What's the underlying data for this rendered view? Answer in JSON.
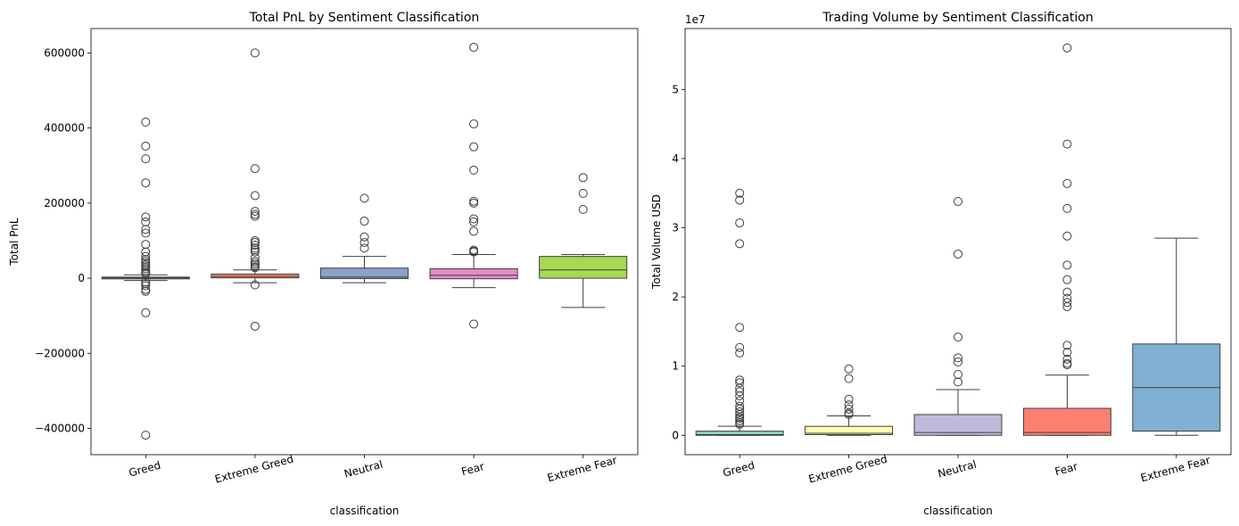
{
  "chart_data": [
    {
      "type": "box",
      "title": "Total PnL by Sentiment Classification",
      "xlabel": "classification",
      "ylabel": "Total PnL",
      "ylim": [
        -470000,
        665000
      ],
      "yticks": [
        -400000,
        -200000,
        0,
        200000,
        400000,
        600000
      ],
      "ytick_labels": [
        "−400000",
        "−200000",
        "0",
        "200000",
        "400000",
        "600000"
      ],
      "y_exponent_label": "",
      "categories": [
        "Greed",
        "Extreme Greed",
        "Neutral",
        "Fear",
        "Extreme Fear"
      ],
      "colors": [
        "#66c2a5",
        "#fc8d62",
        "#8da0cb",
        "#e78ac3",
        "#a6d854"
      ],
      "boxes": [
        {
          "q1": -1500,
          "median": 500,
          "q3": 3000,
          "whisker_low": -6000,
          "whisker_high": 9000,
          "outliers": [
            416000,
            352000,
            318000,
            254000,
            163000,
            150000,
            130000,
            120000,
            90000,
            70000,
            58000,
            50000,
            45000,
            40000,
            35000,
            30000,
            25000,
            20000,
            15000,
            12000,
            -10000,
            -15000,
            -20000,
            -30000,
            -35000,
            -92000,
            -418000
          ]
        },
        {
          "q1": 1000,
          "median": 5000,
          "q3": 11000,
          "whisker_low": -12000,
          "whisker_high": 22000,
          "outliers": [
            600000,
            292000,
            220000,
            178000,
            170000,
            165000,
            100000,
            95000,
            88000,
            80000,
            75000,
            70000,
            55000,
            45000,
            40000,
            35000,
            30000,
            28000,
            -18000,
            -128000
          ]
        },
        {
          "q1": -1000,
          "median": 3000,
          "q3": 27000,
          "whisker_low": -12000,
          "whisker_high": 58000,
          "outliers": [
            213000,
            152000,
            110000,
            95000,
            80000
          ]
        },
        {
          "q1": -1500,
          "median": 8000,
          "q3": 25000,
          "whisker_low": -25000,
          "whisker_high": 63000,
          "outliers": [
            615000,
            411000,
            350000,
            288000,
            205000,
            200000,
            158000,
            150000,
            125000,
            75000,
            72000,
            70000,
            -122000
          ]
        },
        {
          "q1": 0,
          "median": 22000,
          "q3": 58000,
          "whisker_low": -78000,
          "whisker_high": 63000,
          "outliers": [
            268000,
            226000,
            183000
          ]
        }
      ]
    },
    {
      "type": "box",
      "title": "Trading Volume by Sentiment Classification",
      "xlabel": "classification",
      "ylabel": "Total Volume USD",
      "ylim": [
        -2800000,
        58800000
      ],
      "yticks": [
        0,
        10000000,
        20000000,
        30000000,
        40000000,
        50000000
      ],
      "ytick_labels": [
        "0",
        "1",
        "2",
        "3",
        "4",
        "5"
      ],
      "y_exponent_label": "1e7",
      "categories": [
        "Greed",
        "Extreme Greed",
        "Neutral",
        "Fear",
        "Extreme Fear"
      ],
      "colors": [
        "#8dd3c7",
        "#ffffb3",
        "#bebada",
        "#fb8072",
        "#80b1d3"
      ],
      "boxes": [
        {
          "q1": 0,
          "median": 100000,
          "q3": 600000,
          "whisker_low": 0,
          "whisker_high": 1300000,
          "outliers": [
            35000000,
            34000000,
            30700000,
            27700000,
            15600000,
            12700000,
            11900000,
            8000000,
            7600000,
            6800000,
            6300000,
            5700000,
            5000000,
            4200000,
            3800000,
            3400000,
            3000000,
            2600000,
            2400000,
            2100000,
            1800000,
            1600000
          ]
        },
        {
          "q1": 100000,
          "median": 300000,
          "q3": 1300000,
          "whisker_low": 0,
          "whisker_high": 2800000,
          "outliers": [
            9600000,
            8200000,
            5200000,
            4400000,
            3800000,
            3200000,
            3000000
          ]
        },
        {
          "q1": 0,
          "median": 400000,
          "q3": 3000000,
          "whisker_low": 0,
          "whisker_high": 6600000,
          "outliers": [
            33800000,
            26200000,
            14200000,
            11200000,
            10600000,
            8800000,
            7700000
          ]
        },
        {
          "q1": 0,
          "median": 400000,
          "q3": 3900000,
          "whisker_low": 0,
          "whisker_high": 8700000,
          "outliers": [
            56000000,
            42100000,
            36400000,
            32800000,
            28800000,
            24600000,
            22500000,
            20700000,
            19800000,
            19200000,
            18600000,
            13000000,
            12000000,
            11000000,
            10400000,
            10200000
          ]
        },
        {
          "q1": 600000,
          "median": 6900000,
          "q3": 13200000,
          "whisker_low": 0,
          "whisker_high": 28500000,
          "outliers": []
        }
      ]
    }
  ]
}
